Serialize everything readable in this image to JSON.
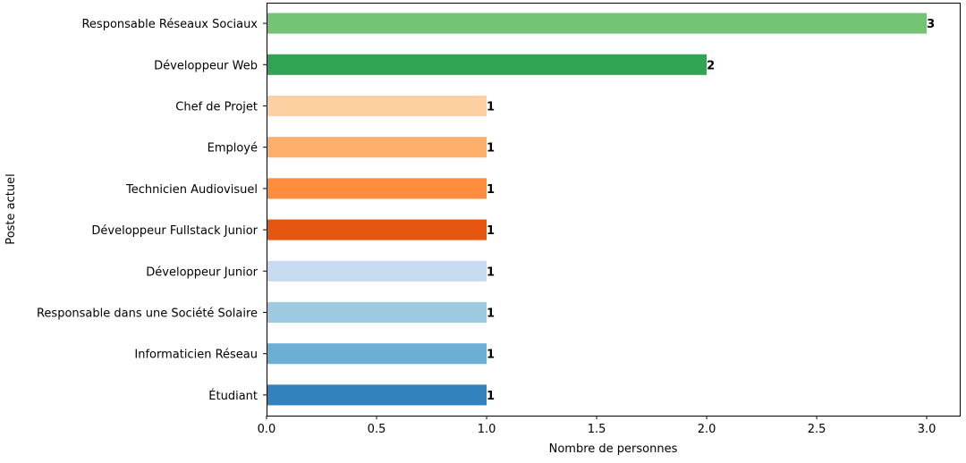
{
  "chart_data": {
    "type": "bar",
    "orientation": "horizontal",
    "title": "",
    "xlabel": "Nombre de personnes",
    "ylabel": "Poste actuel",
    "xlim": [
      0,
      3.15
    ],
    "xticks": [
      "0.0",
      "0.5",
      "1.0",
      "1.5",
      "2.0",
      "2.5",
      "3.0"
    ],
    "grid": false,
    "categories": [
      "Responsable Réseaux Sociaux",
      "Développeur Web",
      "Chef de Projet",
      "Employé",
      "Technicien Audiovisuel",
      "Développeur Fullstack Junior",
      "Développeur Junior",
      "Responsable dans une Société Solaire",
      "Informaticien Réseau",
      "Étudiant"
    ],
    "values": [
      3,
      2,
      1,
      1,
      1,
      1,
      1,
      1,
      1,
      1
    ],
    "value_labels": [
      "3",
      "2",
      "1",
      "1",
      "1",
      "1",
      "1",
      "1",
      "1",
      "1"
    ],
    "colors": [
      "#74c476",
      "#31a354",
      "#fdd0a2",
      "#fdae6b",
      "#fd8d3c",
      "#e6550d",
      "#c6dbef",
      "#9ecae1",
      "#6baed6",
      "#3182bd"
    ]
  }
}
